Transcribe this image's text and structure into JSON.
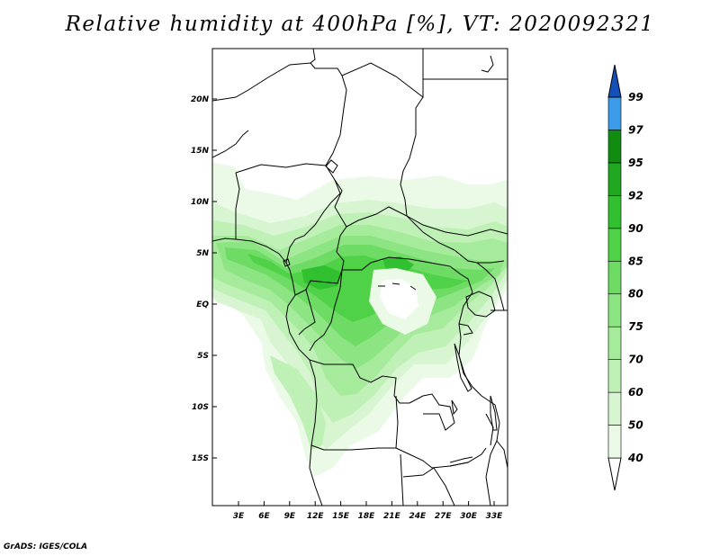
{
  "title": "Relative humidity at 400hPa [%], VT: 2020092321",
  "credit": "GrADS: IGES/COLA",
  "lat_labels": [
    "20N",
    "15N",
    "10N",
    "5N",
    "EQ",
    "5S",
    "10S",
    "15S"
  ],
  "lon_labels": [
    "3E",
    "6E",
    "9E",
    "12E",
    "15E",
    "18E",
    "21E",
    "24E",
    "27E",
    "30E",
    "33E"
  ],
  "colorbar": {
    "labels": [
      "40",
      "50",
      "60",
      "70",
      "75",
      "80",
      "85",
      "90",
      "92",
      "95",
      "97",
      "99"
    ],
    "colors": [
      "#ffffff",
      "#eafae6",
      "#d6f5d0",
      "#bff0b6",
      "#a6eb9c",
      "#8ce482",
      "#6ddb64",
      "#4fd248",
      "#30c030",
      "#20a820",
      "#118c11",
      "#3c9be8",
      "#1e6ed8",
      "#1450b8"
    ]
  },
  "lat_range": [
    -20,
    24
  ],
  "lon_range": [
    0,
    34
  ]
}
